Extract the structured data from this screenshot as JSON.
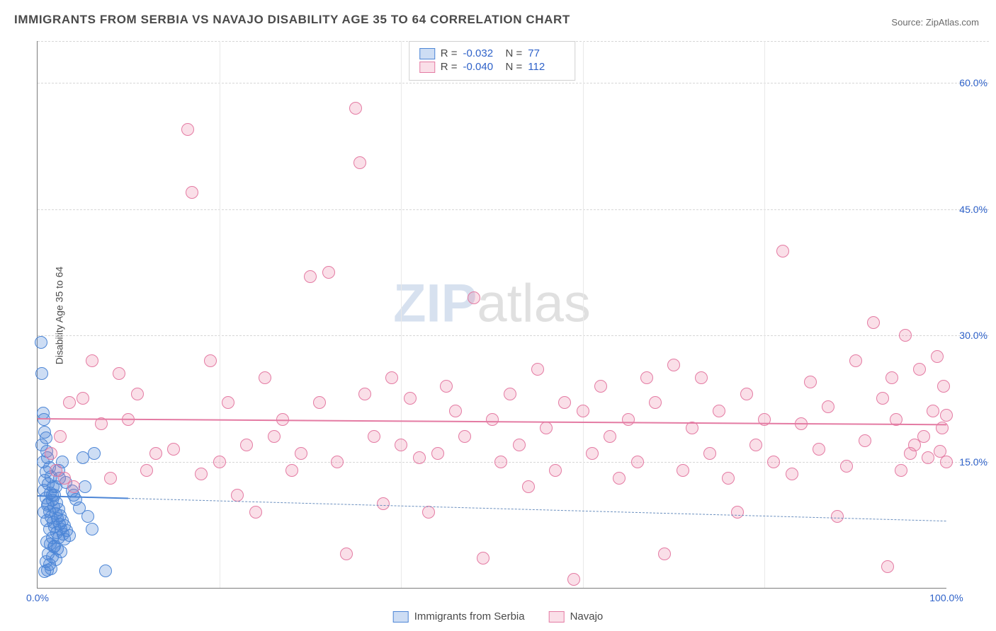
{
  "title": "IMMIGRANTS FROM SERBIA VS NAVAJO DISABILITY AGE 35 TO 64 CORRELATION CHART",
  "source_label": "Source:",
  "source_name": "ZipAtlas.com",
  "ylabel": "Disability Age 35 to 64",
  "watermark": {
    "bold": "ZIP",
    "rest": "atlas"
  },
  "chart": {
    "type": "scatter",
    "background_color": "#ffffff",
    "grid_color": "#d6d6d6",
    "axis_color": "#7c7c7c",
    "tick_color": "#2f62c9",
    "xlim": [
      0,
      100
    ],
    "ylim": [
      0,
      65
    ],
    "ytick_step": 15,
    "ytick_labels": [
      "15.0%",
      "30.0%",
      "45.0%",
      "60.0%"
    ],
    "xtick_step": 20,
    "xtick_visible": [
      0,
      100
    ],
    "xtick_labels": [
      "0.0%",
      "100.0%"
    ],
    "marker_radius": 9,
    "marker_border_width": 1.5,
    "trend_width": 2.6
  },
  "series": [
    {
      "id": "serbia",
      "label": "Immigrants from Serbia",
      "fill": "rgba(77,134,214,0.28)",
      "stroke": "#4d86d6",
      "R": "-0.032",
      "N": "77",
      "trend": {
        "x0": 0,
        "y0": 11.0,
        "x1": 100,
        "y1": 8.0,
        "solid_until_x": 10
      },
      "dashed_color": "#6a8fbf",
      "points": [
        [
          0.4,
          29.2
        ],
        [
          0.5,
          25.5
        ],
        [
          0.6,
          20.8
        ],
        [
          0.7,
          20.0
        ],
        [
          0.8,
          18.5
        ],
        [
          0.9,
          17.8
        ],
        [
          0.5,
          17.0
        ],
        [
          1.0,
          16.2
        ],
        [
          1.1,
          15.5
        ],
        [
          0.6,
          15.0
        ],
        [
          1.3,
          14.3
        ],
        [
          0.9,
          13.8
        ],
        [
          1.5,
          13.2
        ],
        [
          0.8,
          12.8
        ],
        [
          1.2,
          12.4
        ],
        [
          1.7,
          12.0
        ],
        [
          0.7,
          11.6
        ],
        [
          1.4,
          11.3
        ],
        [
          1.9,
          11.0
        ],
        [
          0.9,
          10.7
        ],
        [
          1.6,
          10.4
        ],
        [
          2.1,
          10.1
        ],
        [
          1.1,
          9.8
        ],
        [
          1.8,
          9.6
        ],
        [
          2.3,
          9.3
        ],
        [
          1.3,
          9.1
        ],
        [
          2.0,
          8.8
        ],
        [
          2.5,
          8.6
        ],
        [
          1.5,
          8.4
        ],
        [
          2.2,
          8.2
        ],
        [
          2.7,
          8.0
        ],
        [
          1.7,
          7.8
        ],
        [
          2.4,
          7.6
        ],
        [
          3.0,
          7.4
        ],
        [
          1.9,
          7.2
        ],
        [
          2.6,
          7.0
        ],
        [
          3.2,
          6.8
        ],
        [
          2.1,
          6.6
        ],
        [
          2.8,
          6.4
        ],
        [
          3.5,
          6.2
        ],
        [
          2.3,
          6.0
        ],
        [
          3.0,
          5.8
        ],
        [
          1.0,
          5.5
        ],
        [
          1.4,
          5.2
        ],
        [
          1.8,
          4.9
        ],
        [
          2.2,
          4.6
        ],
        [
          2.6,
          4.3
        ],
        [
          1.2,
          4.0
        ],
        [
          1.6,
          3.7
        ],
        [
          2.0,
          3.4
        ],
        [
          0.9,
          3.1
        ],
        [
          1.3,
          2.8
        ],
        [
          3.8,
          11.5
        ],
        [
          4.2,
          10.5
        ],
        [
          4.6,
          9.5
        ],
        [
          5.0,
          15.5
        ],
        [
          5.5,
          8.5
        ],
        [
          6.0,
          7.0
        ],
        [
          0.8,
          1.9
        ],
        [
          1.1,
          2.1
        ],
        [
          1.5,
          2.3
        ],
        [
          1.2,
          10.0
        ],
        [
          1.6,
          11.0
        ],
        [
          2.0,
          12.0
        ],
        [
          2.4,
          13.0
        ],
        [
          0.7,
          9.0
        ],
        [
          1.0,
          8.0
        ],
        [
          1.3,
          7.0
        ],
        [
          1.6,
          6.0
        ],
        [
          1.9,
          5.0
        ],
        [
          2.3,
          14.0
        ],
        [
          2.7,
          15.0
        ],
        [
          3.1,
          12.5
        ],
        [
          4.0,
          11.0
        ],
        [
          5.2,
          12.0
        ],
        [
          7.5,
          2.0
        ],
        [
          6.2,
          16.0
        ]
      ]
    },
    {
      "id": "navajo",
      "label": "Navajo",
      "fill": "rgba(234,120,160,0.24)",
      "stroke": "#e47ba3",
      "R": "-0.040",
      "N": "112",
      "trend": {
        "x0": 0,
        "y0": 20.2,
        "x1": 100,
        "y1": 19.5,
        "solid_until_x": 100
      },
      "points": [
        [
          1.5,
          16.0
        ],
        [
          2.0,
          14.0
        ],
        [
          2.5,
          18.0
        ],
        [
          3.0,
          13.0
        ],
        [
          3.5,
          22.0
        ],
        [
          4.0,
          12.0
        ],
        [
          5.0,
          22.5
        ],
        [
          6.0,
          27.0
        ],
        [
          7.0,
          19.5
        ],
        [
          8.0,
          13.0
        ],
        [
          9.0,
          25.5
        ],
        [
          10.0,
          20.0
        ],
        [
          11.0,
          23.0
        ],
        [
          12.0,
          14.0
        ],
        [
          13.0,
          16.0
        ],
        [
          15.0,
          16.5
        ],
        [
          16.5,
          54.5
        ],
        [
          17.0,
          47.0
        ],
        [
          18.0,
          13.5
        ],
        [
          19.0,
          27.0
        ],
        [
          20.0,
          15.0
        ],
        [
          21.0,
          22.0
        ],
        [
          22.0,
          11.0
        ],
        [
          23.0,
          17.0
        ],
        [
          24.0,
          9.0
        ],
        [
          25.0,
          25.0
        ],
        [
          26.0,
          18.0
        ],
        [
          27.0,
          20.0
        ],
        [
          28.0,
          14.0
        ],
        [
          29.0,
          16.0
        ],
        [
          30.0,
          37.0
        ],
        [
          31.0,
          22.0
        ],
        [
          32.0,
          37.5
        ],
        [
          33.0,
          15.0
        ],
        [
          34.0,
          4.0
        ],
        [
          35.0,
          57.0
        ],
        [
          35.5,
          50.5
        ],
        [
          36.0,
          23.0
        ],
        [
          37.0,
          18.0
        ],
        [
          38.0,
          10.0
        ],
        [
          39.0,
          25.0
        ],
        [
          40.0,
          17.0
        ],
        [
          41.0,
          22.5
        ],
        [
          42.0,
          15.5
        ],
        [
          43.0,
          9.0
        ],
        [
          44.0,
          16.0
        ],
        [
          45.0,
          24.0
        ],
        [
          46.0,
          21.0
        ],
        [
          47.0,
          18.0
        ],
        [
          48.0,
          34.5
        ],
        [
          49.0,
          3.5
        ],
        [
          50.0,
          20.0
        ],
        [
          51.0,
          15.0
        ],
        [
          52.0,
          23.0
        ],
        [
          53.0,
          17.0
        ],
        [
          54.0,
          12.0
        ],
        [
          55.0,
          26.0
        ],
        [
          56.0,
          19.0
        ],
        [
          57.0,
          14.0
        ],
        [
          58.0,
          22.0
        ],
        [
          59.0,
          1.0
        ],
        [
          60.0,
          21.0
        ],
        [
          61.0,
          16.0
        ],
        [
          62.0,
          24.0
        ],
        [
          63.0,
          18.0
        ],
        [
          64.0,
          13.0
        ],
        [
          65.0,
          20.0
        ],
        [
          66.0,
          15.0
        ],
        [
          67.0,
          25.0
        ],
        [
          68.0,
          22.0
        ],
        [
          69.0,
          4.0
        ],
        [
          70.0,
          26.5
        ],
        [
          71.0,
          14.0
        ],
        [
          72.0,
          19.0
        ],
        [
          73.0,
          25.0
        ],
        [
          74.0,
          16.0
        ],
        [
          75.0,
          21.0
        ],
        [
          76.0,
          13.0
        ],
        [
          77.0,
          9.0
        ],
        [
          78.0,
          23.0
        ],
        [
          79.0,
          17.0
        ],
        [
          80.0,
          20.0
        ],
        [
          81.0,
          15.0
        ],
        [
          82.0,
          40.0
        ],
        [
          83.0,
          13.5
        ],
        [
          84.0,
          19.5
        ],
        [
          85.0,
          24.5
        ],
        [
          86.0,
          16.5
        ],
        [
          87.0,
          21.5
        ],
        [
          88.0,
          8.5
        ],
        [
          89.0,
          14.5
        ],
        [
          90.0,
          27.0
        ],
        [
          91.0,
          17.5
        ],
        [
          92.0,
          31.5
        ],
        [
          93.0,
          22.5
        ],
        [
          93.5,
          2.5
        ],
        [
          94.0,
          25.0
        ],
        [
          94.5,
          20.0
        ],
        [
          95.0,
          14.0
        ],
        [
          95.5,
          30.0
        ],
        [
          96.0,
          16.0
        ],
        [
          96.5,
          17.0
        ],
        [
          97.0,
          26.0
        ],
        [
          97.5,
          18.0
        ],
        [
          98.0,
          15.5
        ],
        [
          98.5,
          21.0
        ],
        [
          99.0,
          27.5
        ],
        [
          99.3,
          16.2
        ],
        [
          99.5,
          19.0
        ],
        [
          99.7,
          24.0
        ],
        [
          100.0,
          20.5
        ],
        [
          100.0,
          15.0
        ]
      ]
    }
  ]
}
